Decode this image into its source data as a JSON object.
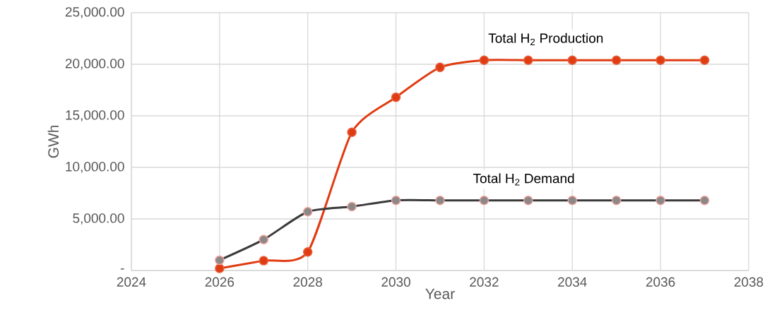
{
  "chart_data": {
    "type": "line",
    "xlabel": "Year",
    "ylabel": "GWh",
    "x": [
      2026,
      2027,
      2028,
      2029,
      2030,
      2031,
      2032,
      2033,
      2034,
      2035,
      2036,
      2037
    ],
    "series": [
      {
        "name": "Total H$_{2}$ Production",
        "color": "#e03c12",
        "values": [
          200,
          950,
          1800,
          13400,
          16800,
          19700,
          20400,
          20400,
          20400,
          20400,
          20400,
          20400
        ]
      },
      {
        "name": "Total H$_{2}$ Demand",
        "color": "#3a3a3a",
        "values": [
          1000,
          3000,
          5700,
          6200,
          6800,
          6800,
          6800,
          6800,
          6800,
          6800,
          6800,
          6800
        ]
      }
    ],
    "xlim": [
      2024,
      2038
    ],
    "xticks": [
      2024,
      2026,
      2028,
      2030,
      2032,
      2034,
      2036,
      2038
    ],
    "ylim": [
      0,
      25000
    ],
    "yticks": [
      {
        "value": 0,
        "label": "-"
      },
      {
        "value": 5000,
        "label": "5,000.00"
      },
      {
        "value": 10000,
        "label": "10,000.00"
      },
      {
        "value": 15000,
        "label": "15,000.00"
      },
      {
        "value": 20000,
        "label": "20,000.00"
      },
      {
        "value": 25000,
        "label": "25,000.00"
      }
    ],
    "grid": true,
    "legend": false,
    "marker": "circle",
    "line_style": "solid"
  }
}
